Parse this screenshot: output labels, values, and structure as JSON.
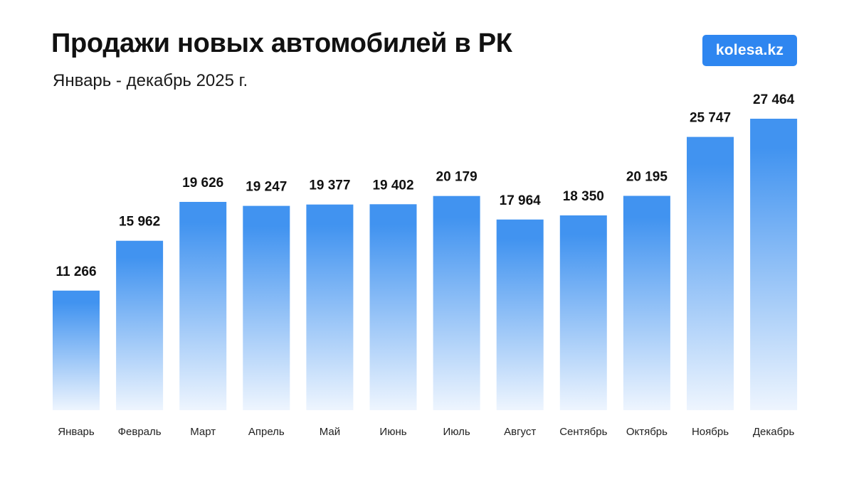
{
  "header": {
    "title": "Продажи новых автомобилей в РК",
    "subtitle": "Январь - декабрь 2025 г."
  },
  "logo": {
    "text": "kolesa.kz",
    "color": "#2e86f0"
  },
  "colors": {
    "bar_top": "#4193f0",
    "bar_bottom": "#eef5fe"
  },
  "chart_data": {
    "type": "bar",
    "title": "Продажи новых автомобилей в РК",
    "subtitle": "Январь - декабрь 2025 г.",
    "xlabel": "",
    "ylabel": "",
    "grid": false,
    "categories": [
      "Январь",
      "Февраль",
      "Март",
      "Апрель",
      "Май",
      "Июнь",
      "Июль",
      "Август",
      "Сентябрь",
      "Октябрь",
      "Ноябрь",
      "Декабрь"
    ],
    "values": [
      11266,
      15962,
      19626,
      19247,
      19377,
      19402,
      20179,
      17964,
      18350,
      20195,
      25747,
      27464
    ],
    "value_labels": [
      "11 266",
      "15 962",
      "19 626",
      "19 247",
      "19 377",
      "19 402",
      "20 179",
      "17 964",
      "18 350",
      "20 195",
      "25 747",
      "27 464"
    ]
  }
}
